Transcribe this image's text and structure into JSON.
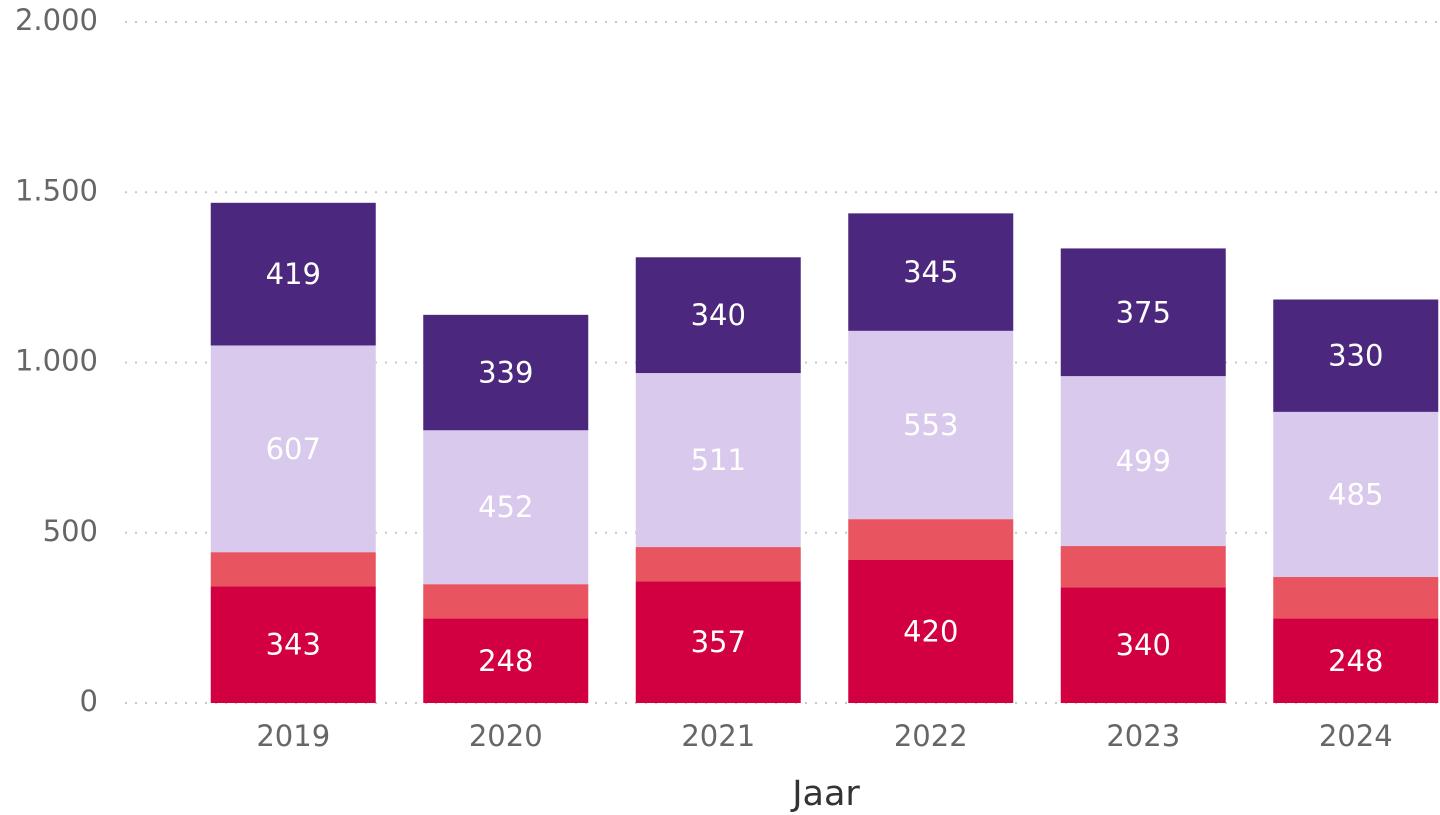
{
  "chart_data": {
    "type": "stacked_bar",
    "x_label": "Jaar",
    "categories": [
      "2019",
      "2020",
      "2021",
      "2022",
      "2023",
      "2024"
    ],
    "series": [
      {
        "color": "#d20040",
        "show_labels": true,
        "values": [
          343,
          248,
          357,
          420,
          340,
          248
        ]
      },
      {
        "color": "#e85560",
        "show_labels": false,
        "values": [
          100,
          101,
          101,
          120,
          121,
          122
        ]
      },
      {
        "color": "#d9c9ec",
        "show_labels": true,
        "values": [
          607,
          452,
          511,
          553,
          499,
          485
        ]
      },
      {
        "color": "#4b277e",
        "show_labels": true,
        "values": [
          419,
          339,
          340,
          345,
          375,
          330
        ]
      }
    ],
    "ylim": [
      0,
      2000
    ],
    "yticks": [
      0,
      500,
      {
        "value": 1000,
        "label": "1.000"
      },
      {
        "value": 1500,
        "label": "1.500"
      },
      {
        "value": 2000,
        "label": "2.000"
      }
    ],
    "grid": true
  }
}
